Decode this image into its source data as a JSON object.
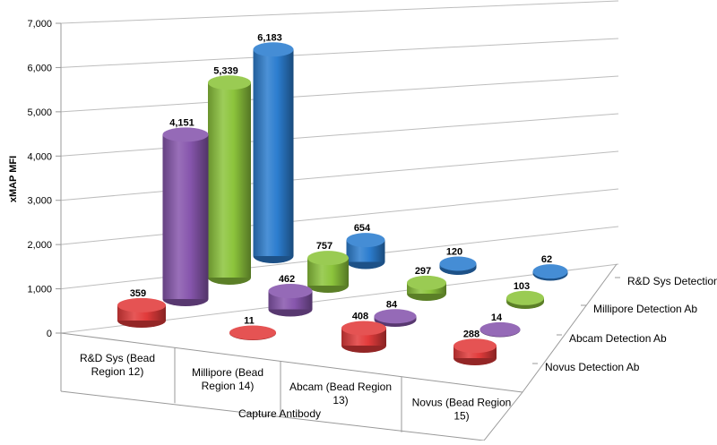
{
  "chart_data": {
    "type": "bar",
    "subtype": "3d-cylinder",
    "title": "",
    "xlabel": "Capture Antibody",
    "ylabel": "xMAP MFI",
    "ylim": [
      0,
      7000
    ],
    "yticks": [
      "0",
      "1,000",
      "2,000",
      "3,000",
      "4,000",
      "5,000",
      "6,000",
      "7,000"
    ],
    "categories": [
      [
        "R&D Sys (Bead",
        "Region 12)"
      ],
      [
        "Millipore (Bead",
        "Region 14)"
      ],
      [
        "Abcam (Bead Region",
        "13)"
      ],
      [
        "Novus (Bead Region",
        "15)"
      ]
    ],
    "grid": true,
    "series": [
      {
        "name": "Novus Detection Ab",
        "color": "#e23b3b",
        "values": [
          359,
          11,
          408,
          288
        ],
        "labels": [
          "359",
          "11",
          "408",
          "288"
        ]
      },
      {
        "name": "Abcam Detection Ab",
        "color": "#8756ad",
        "values": [
          4151,
          462,
          84,
          14
        ],
        "labels": [
          "4,151",
          "462",
          "84",
          "14"
        ]
      },
      {
        "name": "Millipore Detection Ab",
        "color": "#8cc43c",
        "values": [
          5339,
          757,
          297,
          103
        ],
        "labels": [
          "5,339",
          "757",
          "297",
          "103"
        ]
      },
      {
        "name": "R&D Sys Detection Ab",
        "color": "#2c7dcf",
        "values": [
          6183,
          654,
          120,
          62
        ],
        "labels": [
          "6,183",
          "654",
          "120",
          "62"
        ]
      }
    ]
  }
}
